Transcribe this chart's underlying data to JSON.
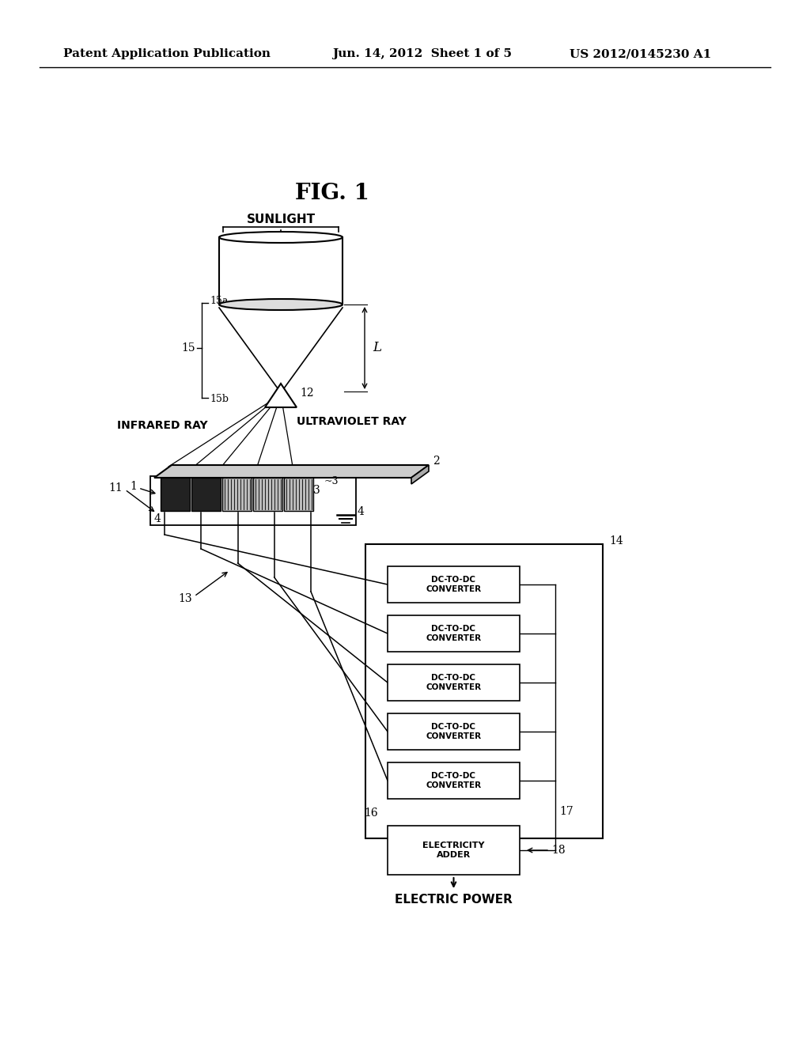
{
  "background_color": "#ffffff",
  "header_left": "Patent Application Publication",
  "header_center": "Jun. 14, 2012  Sheet 1 of 5",
  "header_right": "US 2012/0145230 A1",
  "fig_label": "FIG. 1",
  "labels": {
    "sunlight": "SUNLIGHT",
    "infrared": "INFRARED RAY",
    "ultraviolet": "ULTRAVIOLET RAY",
    "electric_power": "ELECTRIC POWER",
    "electricity_adder": "ELECTRICITY\nADDER",
    "dc_converter": "DC-TO-DC\nCONVERTER"
  },
  "ref_numbers": {
    "n1": "1",
    "n2": "2",
    "n3a": "3",
    "n3b": "3",
    "n4a": "4",
    "n4b": "4",
    "n11": "11",
    "n12": "12",
    "n13": "13",
    "n14": "14",
    "n15": "15",
    "n15a": "15a",
    "n15b": "15b",
    "n16": "16",
    "n17": "17",
    "n18": "18",
    "nL": "L"
  }
}
